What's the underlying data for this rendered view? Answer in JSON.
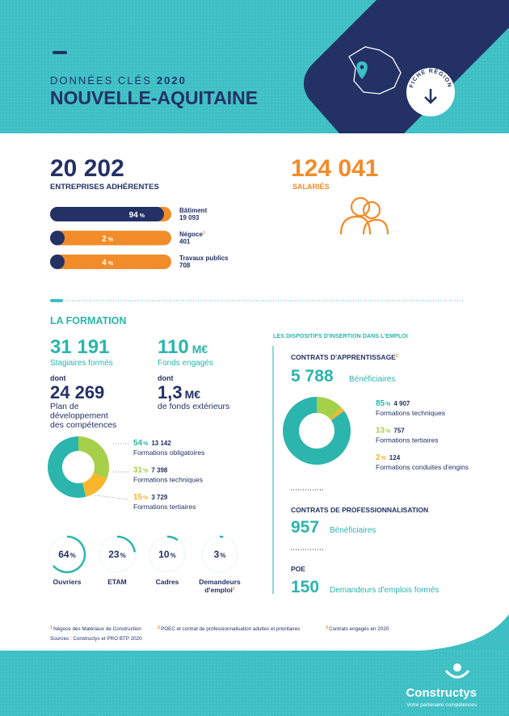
{
  "units": {
    "percent": "%",
    "money": "M€"
  },
  "header": {
    "label": "DONNÉES CLÉS",
    "year": "2020",
    "region": "NOUVELLE-AQUITAINE",
    "badge": "FICHE RÉGION"
  },
  "entreprises": {
    "value": "20 202",
    "label": "ENTREPRISES ADHÉRENTES",
    "bars": [
      {
        "pct": 94,
        "name": "Bâtiment",
        "count": "19 093"
      },
      {
        "pct": 2,
        "name": "Négoce",
        "note": "1",
        "count": "401"
      },
      {
        "pct": 4,
        "name": "Travaux publics",
        "count": "708"
      }
    ]
  },
  "salaries": {
    "value": "124 041",
    "label": "SALARIÉS"
  },
  "formation": {
    "title": "LA FORMATION",
    "stagiaires": {
      "value": "31 191",
      "label": "Stagiaires formés"
    },
    "fonds": {
      "value": "110",
      "label": "Fonds engagés"
    },
    "plan": {
      "prefix": "dont",
      "value": "24 269",
      "lines": [
        "Plan de",
        "développement",
        "des compétences"
      ]
    },
    "exterieurs": {
      "prefix": "dont",
      "value": "1,3",
      "label": "de fonds extérieurs"
    },
    "donut": [
      {
        "pct": 54,
        "count": "13 142",
        "label": "Formations obligatoires",
        "color": "#2bb5ad"
      },
      {
        "pct": 31,
        "count": "7 398",
        "label": "Formations techniques",
        "color": "#a6cf4a"
      },
      {
        "pct": 15,
        "count": "3 729",
        "label": "Formations tertiaires",
        "color": "#f9b52c"
      }
    ],
    "profils": [
      {
        "pct": 64,
        "label": [
          "Ouvriers"
        ]
      },
      {
        "pct": 23,
        "label": [
          "ETAM"
        ]
      },
      {
        "pct": 10,
        "label": [
          "Cadres"
        ]
      },
      {
        "pct": 3,
        "label": [
          "Demandeurs",
          "d'emploi"
        ],
        "note": "3"
      }
    ]
  },
  "insertion": {
    "title": "LES DISPOSITIFS D'INSERTION DANS L'EMPLOI",
    "apprentissage": {
      "title": "CONTRATS D'APPRENTISSAGE",
      "note": "2",
      "value": "5 788",
      "label": "Bénéficiaires",
      "donut": [
        {
          "pct": 85,
          "count": "4 907",
          "label": "Formations techniques",
          "color": "#2bb5ad"
        },
        {
          "pct": 13,
          "count": "757",
          "label": "Formations tertiaires",
          "color": "#a6cf4a"
        },
        {
          "pct": 2,
          "count": "124",
          "label": "Formations conduites d'engins",
          "color": "#f9b52c"
        }
      ]
    },
    "professionnalisation": {
      "title": "CONTRATS DE PROFESSIONNALISATION",
      "value": "957",
      "label": "Bénéficiaires"
    },
    "poe": {
      "title": "POE",
      "value": "150",
      "label": "Demandeurs d'emplois formés"
    }
  },
  "footnotes": [
    {
      "mark": "1",
      "text": "Négoce des Matériaux de Construction"
    },
    {
      "mark": "2",
      "text": "POEC et contrat de professionnalisation adultes et prioritaires"
    },
    {
      "mark": "3",
      "text": "Contrats engagés en 2020"
    }
  ],
  "sources": "Sources : Constructys et PRO BTP 2020",
  "brand": {
    "name": "Constructys",
    "tagline": "Votre partenaire compétences"
  }
}
